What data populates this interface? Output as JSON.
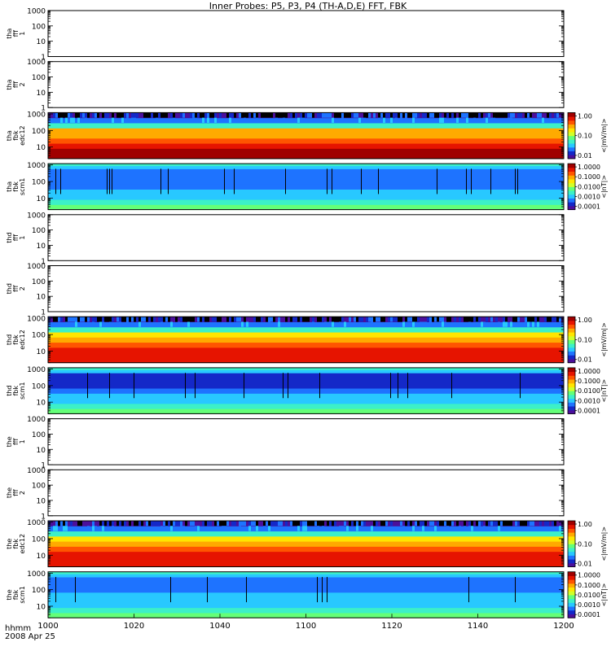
{
  "title": "Inner Probes: P5, P3, P4 (TH-A,D,E) FFT, FBK",
  "colors": {
    "spectrogram_scale": [
      "#000000",
      "#4b0f9b",
      "#1428c8",
      "#1e73ff",
      "#28c8ff",
      "#3cf0c8",
      "#64ff78",
      "#d2ff28",
      "#ffe600",
      "#ffaa00",
      "#ff5500",
      "#e61400",
      "#a00000"
    ]
  },
  "chart_data": [
    {
      "type": "heatmap",
      "panel_label": [
        "tha",
        "fff",
        "1"
      ],
      "y_log": true,
      "ylim": [
        1,
        1000
      ],
      "y_ticks": [
        "1",
        "10",
        "100",
        "1000"
      ],
      "data": "empty",
      "colorbar": null,
      "fill_levels": null
    },
    {
      "type": "heatmap",
      "panel_label": [
        "tha",
        "fff",
        "2"
      ],
      "y_log": true,
      "ylim": [
        1,
        1000
      ],
      "y_ticks": [
        "1",
        "10",
        "100",
        "1000"
      ],
      "data": "empty",
      "colorbar": null,
      "fill_levels": null
    },
    {
      "type": "heatmap",
      "panel_label": [
        "tha",
        "fbk",
        "edc12"
      ],
      "y_log": true,
      "ylim": [
        2,
        1200
      ],
      "y_ticks": [
        "10",
        "100",
        "1000"
      ],
      "colorbar": {
        "label": "<|mV/m|>",
        "ticks": [
          "1.00",
          "0.10",
          "0.01"
        ]
      },
      "fill_levels": [
        12,
        12,
        11,
        10,
        9,
        9,
        5,
        3,
        1
      ]
    },
    {
      "type": "heatmap",
      "panel_label": [
        "tha",
        "fbk",
        "scm1"
      ],
      "y_log": true,
      "ylim": [
        2,
        1200
      ],
      "y_ticks": [
        "10",
        "100",
        "1000"
      ],
      "colorbar": {
        "label": "<|nT|>",
        "ticks": [
          "1.0000",
          "0.1000",
          "0.0100",
          "0.0010",
          "0.0001"
        ]
      },
      "fill_levels": [
        6,
        5,
        4,
        4,
        3,
        3,
        3,
        3,
        4
      ]
    },
    {
      "type": "heatmap",
      "panel_label": [
        "thd",
        "fff",
        "1"
      ],
      "y_log": true,
      "ylim": [
        1,
        1000
      ],
      "y_ticks": [
        "1",
        "10",
        "100",
        "1000"
      ],
      "data": "empty",
      "colorbar": null,
      "fill_levels": null
    },
    {
      "type": "heatmap",
      "panel_label": [
        "thd",
        "fff",
        "2"
      ],
      "y_log": true,
      "ylim": [
        1,
        1000
      ],
      "y_ticks": [
        "1",
        "10",
        "100",
        "1000"
      ],
      "data": "empty",
      "colorbar": null,
      "fill_levels": null
    },
    {
      "type": "heatmap",
      "panel_label": [
        "thd",
        "fbk",
        "edc12"
      ],
      "y_log": true,
      "ylim": [
        2,
        1200
      ],
      "y_ticks": [
        "10",
        "100",
        "1000"
      ],
      "colorbar": {
        "label": "<|mV/m|>",
        "ticks": [
          "1.00",
          "0.10",
          "0.01"
        ]
      },
      "fill_levels": [
        11,
        11,
        11,
        10,
        9,
        8,
        5,
        3,
        1
      ]
    },
    {
      "type": "heatmap",
      "panel_label": [
        "thd",
        "fbk",
        "scm1"
      ],
      "y_log": true,
      "ylim": [
        2,
        1200
      ],
      "y_ticks": [
        "10",
        "100",
        "1000"
      ],
      "colorbar": {
        "label": "<|nT|>",
        "ticks": [
          "1.0000",
          "0.1000",
          "0.0100",
          "0.0010",
          "0.0001"
        ]
      },
      "fill_levels": [
        6,
        5,
        4,
        4,
        3,
        2,
        2,
        2,
        4
      ]
    },
    {
      "type": "heatmap",
      "panel_label": [
        "the",
        "fff",
        "1"
      ],
      "y_log": true,
      "ylim": [
        1,
        1000
      ],
      "y_ticks": [
        "1",
        "10",
        "100",
        "1000"
      ],
      "data": "empty",
      "colorbar": null,
      "fill_levels": null
    },
    {
      "type": "heatmap",
      "panel_label": [
        "the",
        "fff",
        "2"
      ],
      "y_log": true,
      "ylim": [
        1,
        1000
      ],
      "y_ticks": [
        "1",
        "10",
        "100",
        "1000"
      ],
      "data": "empty",
      "colorbar": null,
      "fill_levels": null
    },
    {
      "type": "heatmap",
      "panel_label": [
        "the",
        "fbk",
        "edc12"
      ],
      "y_log": true,
      "ylim": [
        2,
        1200
      ],
      "y_ticks": [
        "10",
        "100",
        "1000"
      ],
      "colorbar": {
        "label": "<|mV/m|>",
        "ticks": [
          "1.00",
          "0.10",
          "0.01"
        ]
      },
      "fill_levels": [
        11,
        11,
        11,
        10,
        9,
        8,
        5,
        3,
        1
      ]
    },
    {
      "type": "heatmap",
      "panel_label": [
        "the",
        "fbk",
        "scm1"
      ],
      "y_log": true,
      "ylim": [
        2,
        1200
      ],
      "y_ticks": [
        "10",
        "100",
        "1000"
      ],
      "colorbar": {
        "label": "<|nT|>",
        "ticks": [
          "1.0000",
          "0.1000",
          "0.0100",
          "0.0010",
          "0.0001"
        ]
      },
      "fill_levels": [
        6,
        5,
        4,
        4,
        4,
        3,
        3,
        3,
        4
      ]
    }
  ],
  "x_axis": {
    "ticks": [
      "1000",
      "1020",
      "1040",
      "1100",
      "1120",
      "1140",
      "1200"
    ],
    "unit_label": "hhmm",
    "date_label": "2008 Apr 25"
  }
}
